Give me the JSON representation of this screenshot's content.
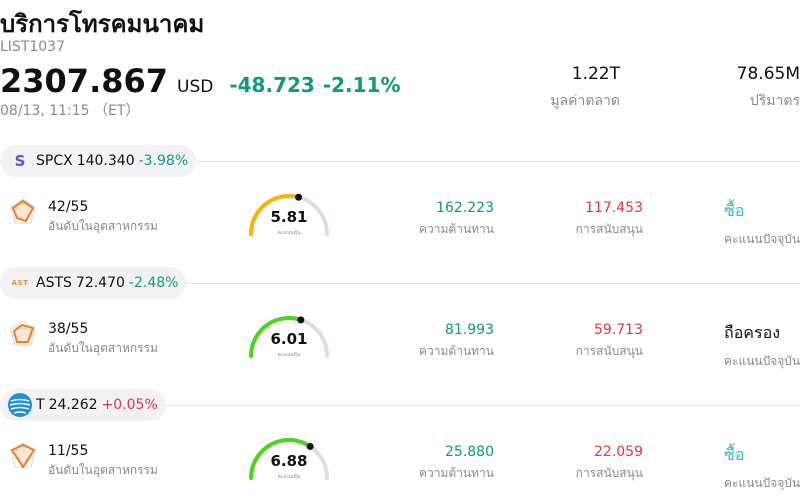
{
  "header": {
    "title": "บริการโทรคมนาคม",
    "code": "LIST1037",
    "price": "2307.867",
    "currency": "USD",
    "change": "-48.723",
    "change_pct": "-2.11%",
    "time": "08/13, 11:15 （ET）"
  },
  "stats": {
    "market_cap_value": "1.22T",
    "market_cap_label": "มูลค่าตลาด",
    "volume_value": "78.65M",
    "volume_label": "ปริมาตร"
  },
  "colors": {
    "negative": "#0f9a7e",
    "positive": "#e5343f",
    "buy": "#2bbfc9",
    "gauge_yellow": "#f5b800",
    "gauge_green": "#4cd31a",
    "gauge_track": "#dcdce6"
  },
  "stocks": [
    {
      "logo_text": "S",
      "symbol": "SPCX",
      "price": "140.340",
      "change_pct": "-3.98%",
      "rank": "42/55",
      "rank_label": "อันดับในอุตสาหกรรม",
      "score": "5.81",
      "score_fraction": 0.581,
      "score_label": "คะแนนหุ้น",
      "resistance": "162.223",
      "resistance_label": "ความต้านทาน",
      "support": "117.453",
      "support_label": "การสนับสนุน",
      "rating": "ซื้อ",
      "rating_label": "คะแนนปัจจุบัน"
    },
    {
      "logo_text": "AST",
      "symbol": "ASTS",
      "price": "72.470",
      "change_pct": "-2.48%",
      "rank": "38/55",
      "rank_label": "อันดับในอุตสาหกรรม",
      "score": "6.01",
      "score_fraction": 0.601,
      "score_label": "คะแนนหุ้น",
      "resistance": "81.993",
      "resistance_label": "ความต้านทาน",
      "support": "59.713",
      "support_label": "การสนับสนุน",
      "rating": "ถือครอง",
      "rating_label": "คะแนนปัจจุบัน"
    },
    {
      "logo_text": "",
      "symbol": "T",
      "price": "24.262",
      "change_pct": "+0.05%",
      "rank": "11/55",
      "rank_label": "อันดับในอุตสาหกรรม",
      "score": "6.88",
      "score_fraction": 0.688,
      "score_label": "คะแนนหุ้น",
      "resistance": "25.880",
      "resistance_label": "ความต้านทาน",
      "support": "22.059",
      "support_label": "การสนับสนุน",
      "rating": "ซื้อ",
      "rating_label": "คะแนนปัจจุบัน"
    }
  ]
}
